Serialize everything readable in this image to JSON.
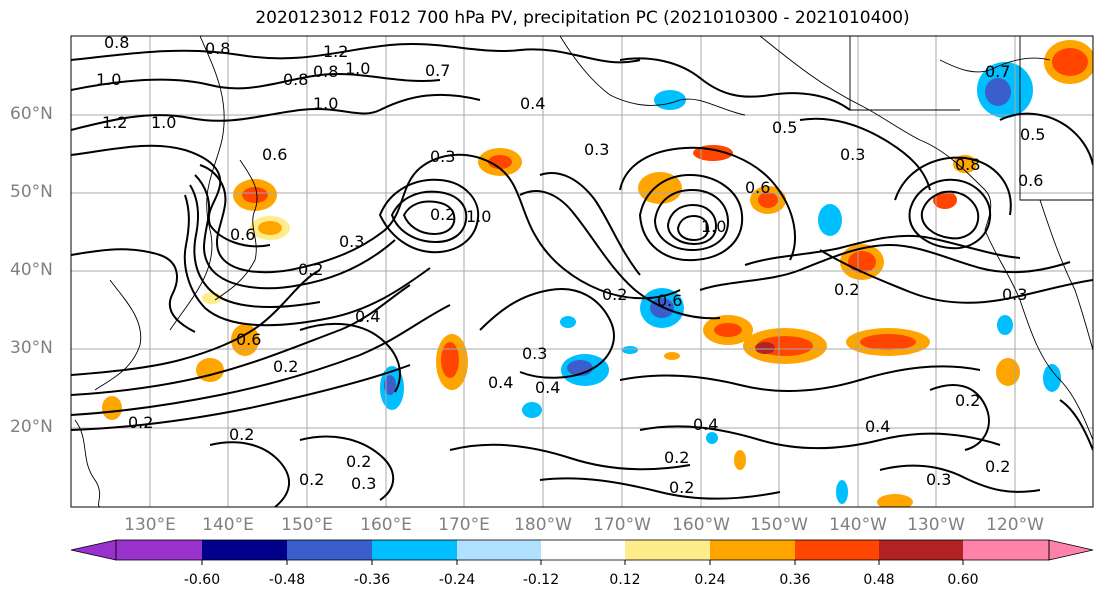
{
  "title": "2020123012 F012 700 hPa PV, precipitation PC (2021010300 - 2021010400)",
  "lat_labels": [
    "60°N",
    "50°N",
    "40°N",
    "30°N",
    "20°N"
  ],
  "lon_labels": [
    "130°E",
    "140°E",
    "150°E",
    "160°E",
    "170°E",
    "180°W",
    "170°W",
    "160°W",
    "150°W",
    "140°W",
    "130°W",
    "120°W"
  ],
  "colorbar": {
    "ticks": [
      "-0.60",
      "-0.48",
      "-0.36",
      "-0.24",
      "-0.12",
      "0.12",
      "0.24",
      "0.36",
      "0.48",
      "0.60"
    ],
    "colors": [
      "#9932CC",
      "#00008B",
      "#3A5FCD",
      "#00BFFF",
      "#B0E2FF",
      "#FFFFFF",
      "#FFEC8B",
      "#FFA500",
      "#FF4500",
      "#B22222",
      "#FF82AB"
    ]
  },
  "contour_labels": [
    "0.8",
    "0.8",
    "1.2",
    "1.0",
    "1.0",
    "0.8",
    "0.8",
    "1.0",
    "1.2",
    "1.0",
    "0.7",
    "0.4",
    "0.3",
    "0.5",
    "0.6",
    "0.3",
    "0.2",
    "1.0",
    "0.6",
    "0.3",
    "0.2",
    "0.4",
    "0.6",
    "0.2",
    "0.3",
    "0.4",
    "0.4",
    "0.2",
    "0.3",
    "0.2",
    "0.2",
    "0.2",
    "0.2",
    "0.6",
    "1.0",
    "0.6",
    "0.2",
    "0.4",
    "0.2",
    "0.4",
    "0.2",
    "0.2",
    "0.3",
    "0.5",
    "0.6",
    "0.8",
    "0.3",
    "0.7",
    "0.2",
    "0.3"
  ]
}
